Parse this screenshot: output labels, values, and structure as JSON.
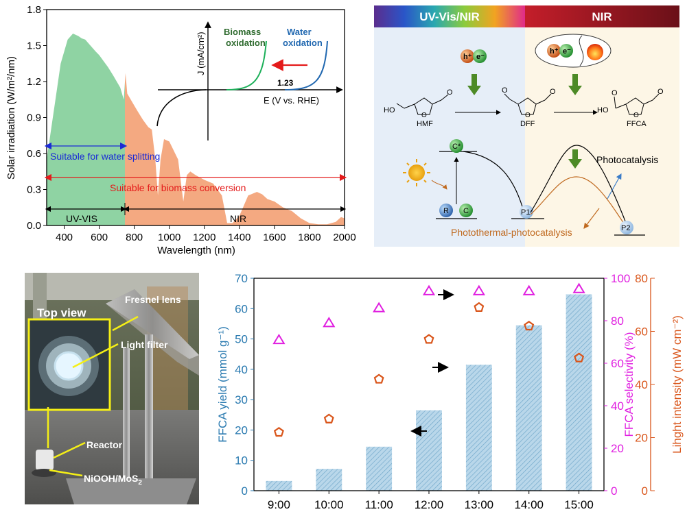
{
  "chart_data": [
    {
      "type": "area",
      "panel": "solar-spectrum",
      "xlabel": "Wavelength (nm)",
      "ylabel": "Solar irradiation (W/m²/nm)",
      "xlim": [
        300,
        2000
      ],
      "ylim": [
        0,
        1.8
      ],
      "x_ticks": [
        "400",
        "600",
        "800",
        "1000",
        "1200",
        "1400",
        "1600",
        "1800",
        "2000"
      ],
      "y_ticks": [
        "0.0",
        "0.3",
        "0.6",
        "0.9",
        "1.2",
        "1.5",
        "1.8"
      ],
      "x": [
        300,
        350,
        380,
        400,
        420,
        450,
        480,
        500,
        520,
        550,
        580,
        600,
        620,
        650,
        680,
        700,
        720,
        740,
        750,
        760,
        780,
        800,
        820,
        850,
        880,
        900,
        920,
        935,
        950,
        970,
        1000,
        1050,
        1080,
        1100,
        1120,
        1150,
        1200,
        1250,
        1300,
        1330,
        1360,
        1400,
        1450,
        1500,
        1530,
        1560,
        1600,
        1650,
        1700,
        1750,
        1800,
        1850,
        1900,
        1950,
        1980,
        2000
      ],
      "values": [
        0.55,
        1.05,
        1.35,
        1.45,
        1.55,
        1.6,
        1.58,
        1.56,
        1.55,
        1.5,
        1.45,
        1.42,
        1.38,
        1.32,
        1.25,
        1.2,
        1.15,
        1.05,
        1.27,
        1.1,
        1.05,
        1.0,
        0.95,
        0.88,
        0.82,
        0.8,
        0.55,
        0.25,
        0.55,
        0.72,
        0.7,
        0.55,
        0.2,
        0.42,
        0.45,
        0.42,
        0.38,
        0.35,
        0.25,
        0.02,
        0.02,
        0.08,
        0.25,
        0.28,
        0.26,
        0.22,
        0.2,
        0.15,
        0.12,
        0.06,
        0.02,
        0.01,
        0.01,
        0.03,
        0.07,
        0.06
      ],
      "uv_vis_boundary": 750,
      "annotations": {
        "water_splitting": "Suitable for water splitting",
        "biomass_conversion": "Suitable for biomass conversion",
        "region_uvvis": "UV-VIS",
        "region_nir": "NIR"
      },
      "colors": {
        "uvvis_fill": "#8fd3a3",
        "nir_fill": "#f4a981",
        "water": "#1a2ad6",
        "biomass": "#e41a1a"
      },
      "inset": {
        "ylabel": "J (mA/cm²)",
        "xlabel": "E (V vs. RHE)",
        "label_biomass": "Biomass",
        "label_biomass2": "oxidation",
        "label_water": "Water",
        "label_water2": "oxidation",
        "marker": "1.23",
        "colors": {
          "biomass": "#1db05a",
          "water": "#2168b0",
          "arrow": "#e41a1a"
        }
      }
    },
    {
      "type": "bar",
      "panel": "ffca-yield",
      "categories": [
        "9:00",
        "10:00",
        "11:00",
        "12:00",
        "13:00",
        "14:00",
        "15:00"
      ],
      "ylabel": "FFCA yield (mmol g⁻¹)",
      "ylabel2": "FFCA selectivity (%)",
      "ylabel3": "Lihght intensity (mW cm⁻²)",
      "ylim": [
        0,
        70
      ],
      "ylim2": [
        0,
        100
      ],
      "ylim3": [
        0,
        80
      ],
      "y_ticks": [
        "0",
        "10",
        "20",
        "30",
        "40",
        "50",
        "60",
        "70"
      ],
      "y2_ticks": [
        "0",
        "20",
        "40",
        "60",
        "80",
        "100"
      ],
      "y3_ticks": [
        "0",
        "20",
        "40",
        "60",
        "80"
      ],
      "series": [
        {
          "name": "FFCA yield",
          "axis": "left",
          "values": [
            3.2,
            7.2,
            14.5,
            26.5,
            41.5,
            54.5,
            64.7
          ]
        },
        {
          "name": "FFCA selectivity",
          "axis": "right1",
          "values": [
            71,
            79,
            86,
            94,
            94,
            94,
            95
          ]
        },
        {
          "name": "Light intensity",
          "axis": "right2",
          "values": [
            22,
            27,
            42,
            57,
            69,
            62,
            50
          ]
        }
      ],
      "colors": {
        "bar": "#a9cce3",
        "bar_hatch": "#6ea6c9",
        "left_axis": "#2a7ab0",
        "selectivity": "#e01fe0",
        "intensity": "#d9551a"
      }
    }
  ],
  "scheme": {
    "header_left": "UV-Vis/NIR",
    "header_right": "NIR",
    "mol_hmf": "HMF",
    "mol_dff": "DFF",
    "mol_ffca": "FFCA",
    "mol_ho": "HO",
    "mol_o": "O",
    "mol_o2": "O",
    "mol_o3": "O",
    "mol_o4": "O",
    "mol_o5": "O",
    "mol_o6": "O",
    "mol_ho2": "HO",
    "carrier_h": "h⁺",
    "carrier_e": "e⁻",
    "carrier_h2": "h⁺",
    "carrier_e2": "e⁻",
    "state_cstar": "C*",
    "state_r": "R",
    "state_c": "C",
    "state_p1": "P1",
    "state_p2": "P2",
    "label_photocatalysis": "Photocatalysis",
    "label_photothermal": "Photothermal-photocatalysis"
  },
  "photo": {
    "label_top_view": "Top view",
    "label_fresnel": "Fresnel lens",
    "label_filter": "Light filter",
    "label_reactor": "Reactor",
    "label_catalyst": "NiOOH/MoS",
    "label_catalyst_sub": "2"
  }
}
